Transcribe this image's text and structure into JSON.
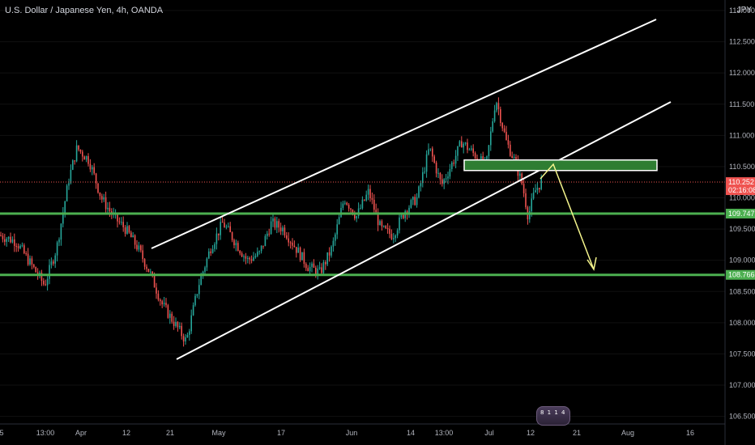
{
  "header": {
    "title": "U.S. Dollar / Japanese Yen, 4h, OANDA",
    "currency": "JPY"
  },
  "colors": {
    "background": "#000000",
    "grid": "#111111",
    "candle_up": "#26a69a",
    "candle_down": "#ef5350",
    "support_line": "#4caf50",
    "channel_line": "#ffffff",
    "arrow": "#f5f58c",
    "zone_fill": "#2e7d32",
    "current_price_tag": "#ef5350"
  },
  "price_axis": {
    "ticks": [
      "113.000",
      "112.500",
      "112.000",
      "111.500",
      "111.000",
      "110.500",
      "110.000",
      "109.500",
      "109.000",
      "108.500",
      "108.000",
      "107.500",
      "107.000",
      "106.500"
    ],
    "current_price": "110.252",
    "countdown": "02:16:08",
    "level_tags": [
      "109.747",
      "108.766"
    ]
  },
  "time_axis": {
    "ticks": [
      "5",
      "13:00",
      "Apr",
      "12",
      "21",
      "May",
      "17",
      "Jun",
      "14",
      "13:00",
      "Jul",
      "12",
      "21",
      "Aug",
      "16"
    ]
  },
  "badge": {
    "text": "8 1 1 4"
  },
  "chart_data": {
    "type": "candlestick",
    "symbol": "USD/JPY",
    "timeframe": "4h",
    "source": "OANDA",
    "ylim": [
      106.3,
      113.2
    ],
    "price_path": [
      [
        "5",
        109.4
      ],
      [
        "13:00",
        108.7
      ],
      [
        "Apr",
        110.8
      ],
      [
        "12",
        109.8
      ],
      [
        "21",
        107.7
      ],
      [
        "May",
        109.5
      ],
      [
        "17",
        109.6
      ],
      [
        "Jun",
        110.1
      ],
      [
        "14",
        110.6
      ],
      [
        "13:00",
        110.6
      ],
      [
        "Jul",
        111.6
      ],
      [
        "12",
        110.2
      ]
    ],
    "horizontal_levels": [
      109.747,
      108.766
    ],
    "current_price": 110.252,
    "resistance_zone": [
      110.45,
      110.58
    ],
    "annotations": [
      "ascending channel upper line",
      "ascending channel lower line",
      "green resistance zone",
      "yellow projection arrow down toward 108.8"
    ]
  }
}
